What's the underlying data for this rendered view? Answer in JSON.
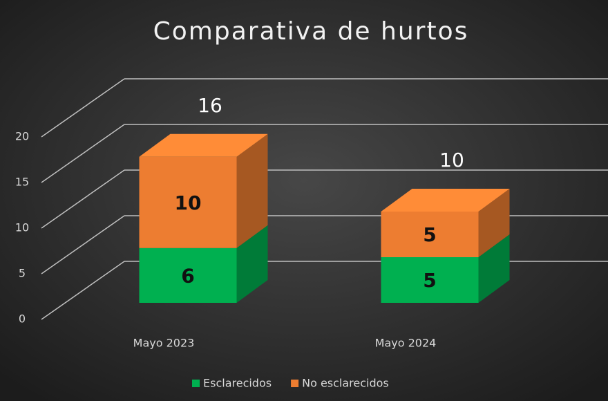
{
  "chart_data": {
    "type": "bar3d_stacked",
    "title": "Comparativa de hurtos",
    "categories": [
      "Mayo 2023",
      "Mayo 2024"
    ],
    "series": [
      {
        "name": "Esclarecidos",
        "color": "#00b050",
        "values": [
          6,
          5
        ]
      },
      {
        "name": "No esclarecidos",
        "color": "#ed7d31",
        "values": [
          10,
          5
        ]
      }
    ],
    "totals": [
      16,
      10
    ],
    "ylim": [
      0,
      20
    ],
    "yticks": [
      0,
      5,
      10,
      15,
      20
    ],
    "grid": true,
    "legend": "bottom"
  }
}
